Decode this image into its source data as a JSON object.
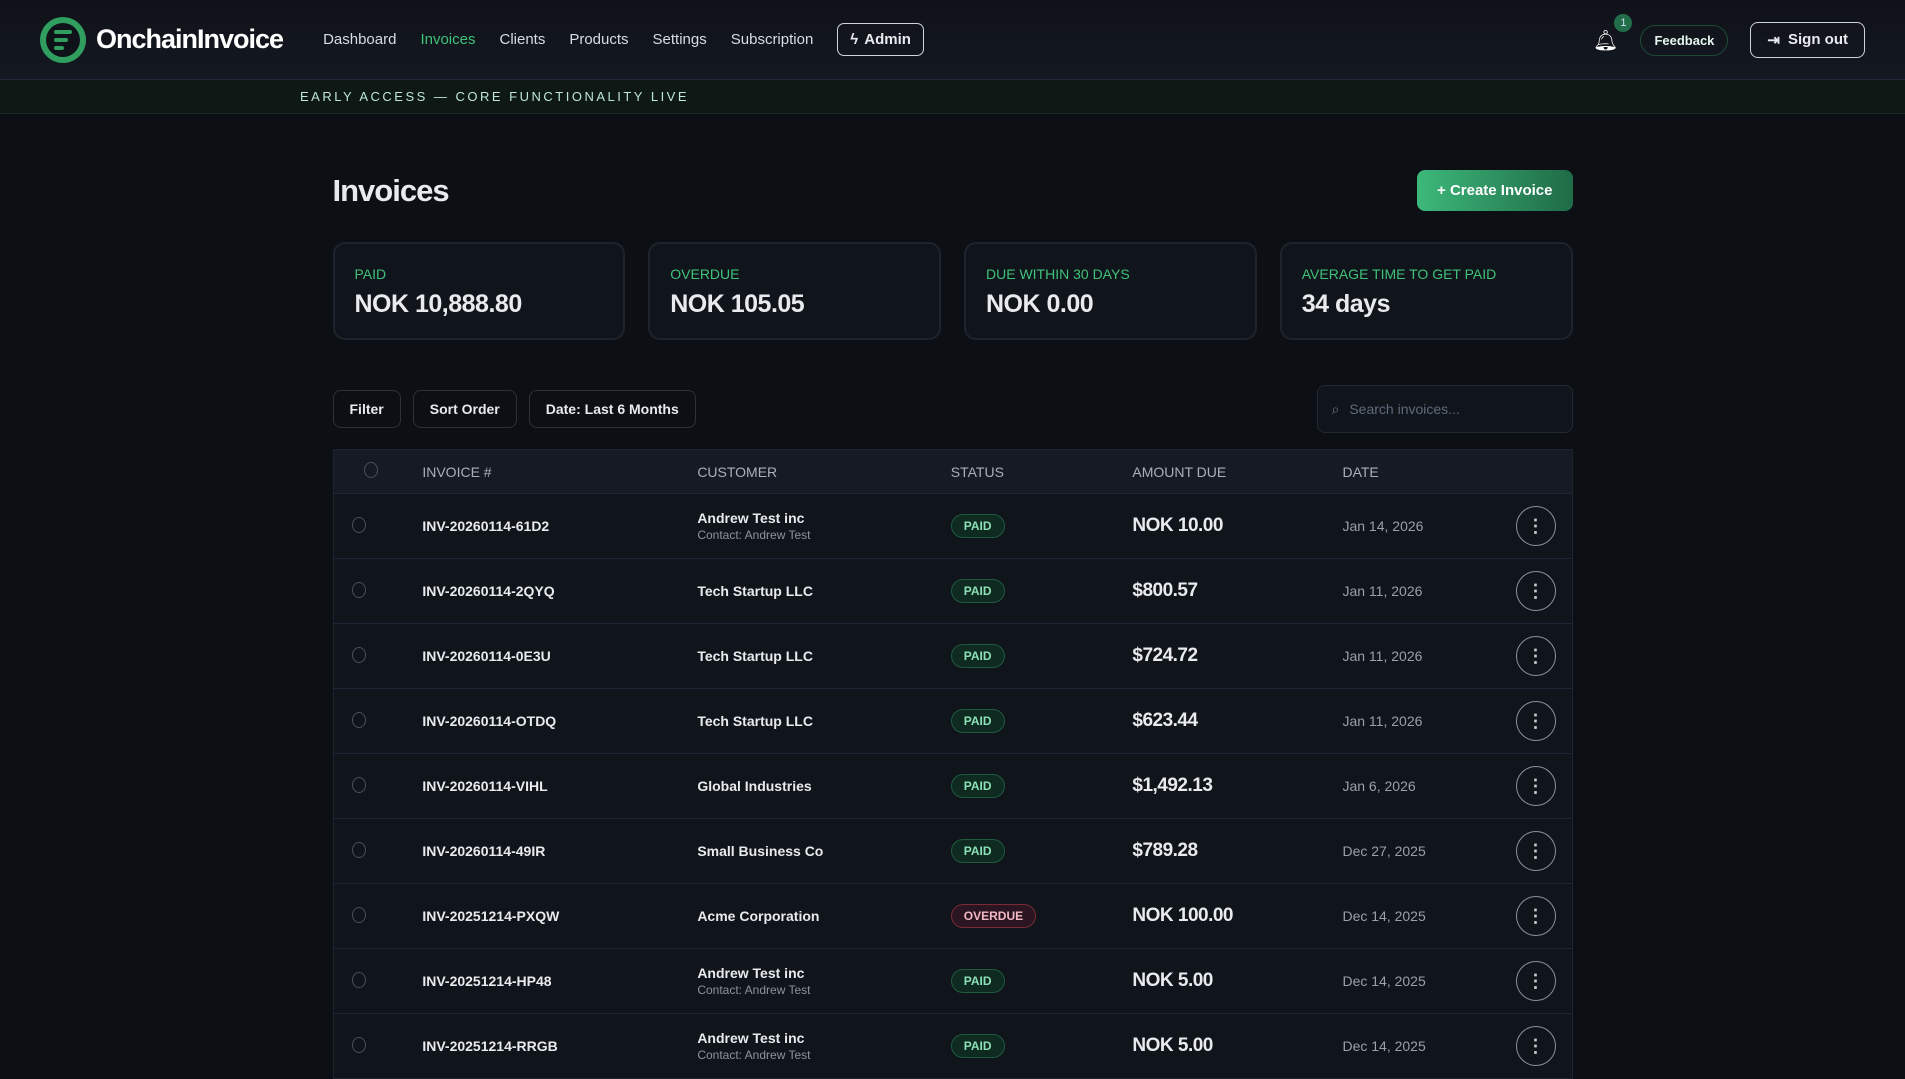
{
  "app": {
    "brand": "OnchainInvoice"
  },
  "nav": [
    {
      "label": "Dashboard"
    },
    {
      "label": "Invoices",
      "active": true
    },
    {
      "label": "Clients"
    },
    {
      "label": "Products"
    },
    {
      "label": "Settings"
    },
    {
      "label": "Subscription"
    }
  ],
  "header": {
    "admin_label": "Admin",
    "notification_count": "1",
    "feedback_label": "Feedback",
    "signout_label": "Sign out"
  },
  "banner": "EARLY ACCESS — CORE FUNCTIONALITY LIVE",
  "page": {
    "title": "Invoices",
    "create_label": "+ Create Invoice"
  },
  "stats": [
    {
      "label": "PAID",
      "value": "NOK 10,888.80"
    },
    {
      "label": "OVERDUE",
      "value": "NOK 105.05"
    },
    {
      "label": "DUE WITHIN 30 DAYS",
      "value": "NOK 0.00"
    },
    {
      "label": "AVERAGE TIME TO GET PAID",
      "value": "34 days"
    }
  ],
  "toolbar": {
    "filter": "Filter",
    "sort": "Sort Order",
    "date": "Date: Last 6 Months",
    "search_placeholder": "Search invoices..."
  },
  "table": {
    "headers": [
      "INVOICE #",
      "CUSTOMER",
      "STATUS",
      "AMOUNT DUE",
      "DATE"
    ],
    "rows": [
      {
        "id": "INV-20260114-61D2",
        "customer": "Andrew Test inc",
        "contact": "Contact: Andrew Test",
        "status": "PAID",
        "amount": "NOK 10.00",
        "date": "Jan 14, 2026"
      },
      {
        "id": "INV-20260114-2QYQ",
        "customer": "Tech Startup LLC",
        "contact": "",
        "status": "PAID",
        "amount": "$800.57",
        "date": "Jan 11, 2026"
      },
      {
        "id": "INV-20260114-0E3U",
        "customer": "Tech Startup LLC",
        "contact": "",
        "status": "PAID",
        "amount": "$724.72",
        "date": "Jan 11, 2026"
      },
      {
        "id": "INV-20260114-OTDQ",
        "customer": "Tech Startup LLC",
        "contact": "",
        "status": "PAID",
        "amount": "$623.44",
        "date": "Jan 11, 2026"
      },
      {
        "id": "INV-20260114-VIHL",
        "customer": "Global Industries",
        "contact": "",
        "status": "PAID",
        "amount": "$1,492.13",
        "date": "Jan 6, 2026"
      },
      {
        "id": "INV-20260114-49IR",
        "customer": "Small Business Co",
        "contact": "",
        "status": "PAID",
        "amount": "$789.28",
        "date": "Dec 27, 2025"
      },
      {
        "id": "INV-20251214-PXQW",
        "customer": "Acme Corporation",
        "contact": "",
        "status": "OVERDUE",
        "amount": "NOK 100.00",
        "date": "Dec 14, 2025"
      },
      {
        "id": "INV-20251214-HP48",
        "customer": "Andrew Test inc",
        "contact": "Contact: Andrew Test",
        "status": "PAID",
        "amount": "NOK 5.00",
        "date": "Dec 14, 2025"
      },
      {
        "id": "INV-20251214-RRGB",
        "customer": "Andrew Test inc",
        "contact": "Contact: Andrew Test",
        "status": "PAID",
        "amount": "NOK 5.00",
        "date": "Dec 14, 2025"
      }
    ]
  },
  "colors": {
    "accent": "#3fc27a",
    "paid": "#8be0b5",
    "overdue": "#f2b8c4"
  }
}
